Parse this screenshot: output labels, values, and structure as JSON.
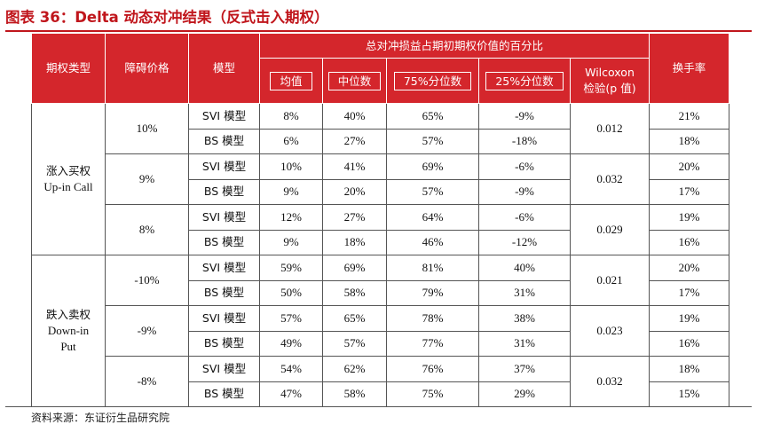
{
  "title": "图表 36：Delta 动态对冲结果（反式击入期权）",
  "header": {
    "option_type": "期权类型",
    "barrier": "障碍价格",
    "model": "模型",
    "pnl_group": "总对冲损益占期初期权价值的百分比",
    "mean": "均值",
    "median": "中位数",
    "p75": "75%分位数",
    "p25": "25%分位数",
    "wilcoxon_line1": "Wilcoxon",
    "wilcoxon_line2": "检验(p 值)",
    "turnover": "换手率"
  },
  "groups": [
    {
      "type_cn": "涨入买权",
      "type_en": "Up-in Call",
      "type_en2": ""
    },
    {
      "type_cn": "跌入卖权",
      "type_en": "Down-in",
      "type_en2": "Put"
    }
  ],
  "barriers": [
    {
      "barrier": "10%",
      "p": "0.012"
    },
    {
      "barrier": "9%",
      "p": "0.032"
    },
    {
      "barrier": "8%",
      "p": "0.029"
    },
    {
      "barrier": "-10%",
      "p": "0.021"
    },
    {
      "barrier": "-9%",
      "p": "0.023"
    },
    {
      "barrier": "-8%",
      "p": "0.032"
    }
  ],
  "rows": [
    {
      "model": "SVI 模型",
      "mean": "8%",
      "median": "40%",
      "p75": "65%",
      "p25": "-9%",
      "turnover": "21%"
    },
    {
      "model": "BS 模型",
      "mean": "6%",
      "median": "27%",
      "p75": "57%",
      "p25": "-18%",
      "turnover": "18%"
    },
    {
      "model": "SVI 模型",
      "mean": "10%",
      "median": "41%",
      "p75": "69%",
      "p25": "-6%",
      "turnover": "20%"
    },
    {
      "model": "BS 模型",
      "mean": "9%",
      "median": "20%",
      "p75": "57%",
      "p25": "-9%",
      "turnover": "17%"
    },
    {
      "model": "SVI 模型",
      "mean": "12%",
      "median": "27%",
      "p75": "64%",
      "p25": "-6%",
      "turnover": "19%"
    },
    {
      "model": "BS 模型",
      "mean": "9%",
      "median": "18%",
      "p75": "46%",
      "p25": "-12%",
      "turnover": "16%"
    },
    {
      "model": "SVI 模型",
      "mean": "59%",
      "median": "69%",
      "p75": "81%",
      "p25": "40%",
      "turnover": "20%"
    },
    {
      "model": "BS 模型",
      "mean": "50%",
      "median": "58%",
      "p75": "79%",
      "p25": "31%",
      "turnover": "17%"
    },
    {
      "model": "SVI 模型",
      "mean": "57%",
      "median": "65%",
      "p75": "78%",
      "p25": "38%",
      "turnover": "19%"
    },
    {
      "model": "BS 模型",
      "mean": "49%",
      "median": "57%",
      "p75": "77%",
      "p25": "31%",
      "turnover": "16%"
    },
    {
      "model": "SVI 模型",
      "mean": "54%",
      "median": "62%",
      "p75": "76%",
      "p25": "37%",
      "turnover": "18%"
    },
    {
      "model": "BS 模型",
      "mean": "47%",
      "median": "58%",
      "p75": "75%",
      "p25": "29%",
      "turnover": "15%"
    }
  ],
  "source": "资料来源：东证衍生品研究院",
  "colors": {
    "accent": "#c0161c",
    "header_bg": "#d4262c"
  }
}
